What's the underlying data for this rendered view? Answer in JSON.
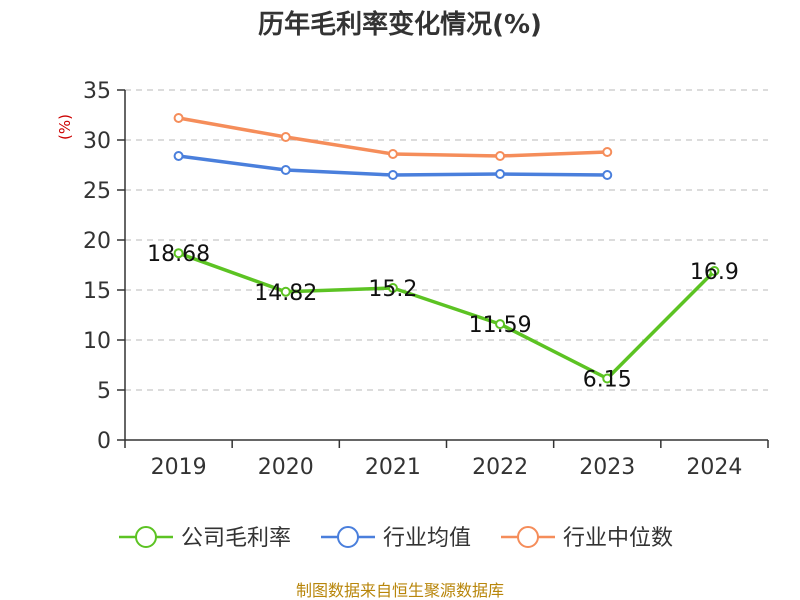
{
  "chart_data": {
    "type": "line",
    "title": "历年毛利率变化情况(%)",
    "ylabel": "(%)",
    "ylim": [
      0,
      35
    ],
    "yticks": [
      0,
      5,
      10,
      15,
      20,
      25,
      30,
      35
    ],
    "categories": [
      "2019",
      "2020",
      "2021",
      "2022",
      "2023",
      "2024"
    ],
    "grid": true,
    "legend_position": "bottom",
    "series": [
      {
        "name": "公司毛利率",
        "color": "#5cc323",
        "values": [
          18.68,
          14.82,
          15.2,
          11.59,
          6.15,
          16.9
        ],
        "labels": [
          "18.68",
          "14.82",
          "15.2",
          "11.59",
          "6.15",
          "16.9"
        ]
      },
      {
        "name": "行业均值",
        "color": "#4a7fdc",
        "values": [
          28.4,
          27.0,
          26.5,
          26.6,
          26.5,
          null
        ]
      },
      {
        "name": "行业中位数",
        "color": "#f58d5a",
        "values": [
          32.2,
          30.3,
          28.6,
          28.4,
          28.8,
          null
        ]
      }
    ]
  },
  "footer": {
    "source": "制图数据来自恒生聚源数据库"
  }
}
